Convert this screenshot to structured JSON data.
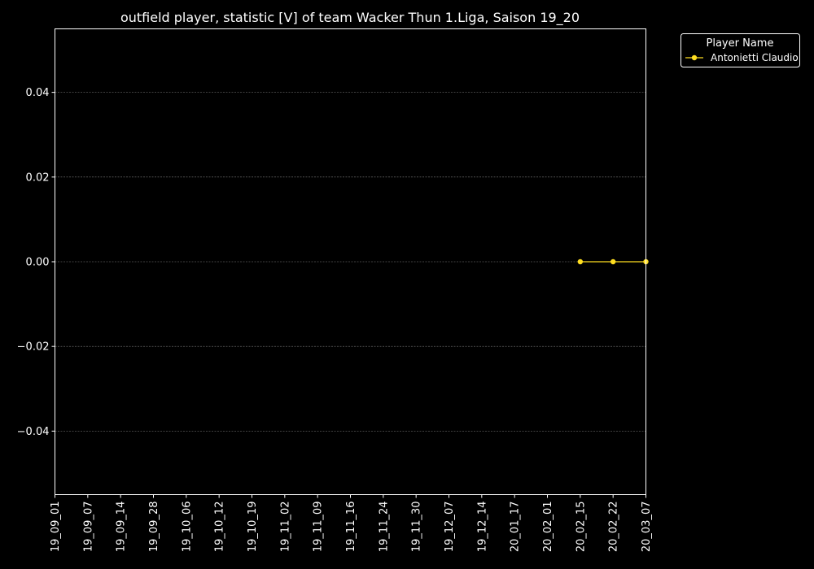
{
  "chart_data": {
    "type": "line",
    "title": "outfield player, statistic [V] of team Wacker Thun 1.Liga, Saison 19_20",
    "xlabel": "",
    "ylabel": "",
    "categories": [
      "19_09_01",
      "19_09_07",
      "19_09_14",
      "19_09_28",
      "19_10_06",
      "19_10_12",
      "19_10_19",
      "19_11_02",
      "19_11_09",
      "19_11_16",
      "19_11_24",
      "19_11_30",
      "19_12_07",
      "19_12_14",
      "20_01_17",
      "20_02_01",
      "20_02_15",
      "20_02_22",
      "20_03_07"
    ],
    "ylim": [
      -0.055,
      0.055
    ],
    "yticks": [
      "0.04",
      "0.02",
      "0.00",
      "−0.02",
      "−0.04"
    ],
    "ytick_values": [
      0.04,
      0.02,
      0.0,
      -0.02,
      -0.04
    ],
    "grid": true,
    "legend": {
      "title": "Player Name",
      "placement": "outside-top-right"
    },
    "series": [
      {
        "name": "Antonietti Claudio",
        "color": "#ffde21",
        "x": [
          "20_02_15",
          "20_02_22",
          "20_03_07"
        ],
        "values": [
          0,
          0,
          0
        ]
      }
    ]
  },
  "colors": {
    "background": "#000000",
    "foreground": "#ffffff",
    "grid": "#7f7f7f"
  }
}
